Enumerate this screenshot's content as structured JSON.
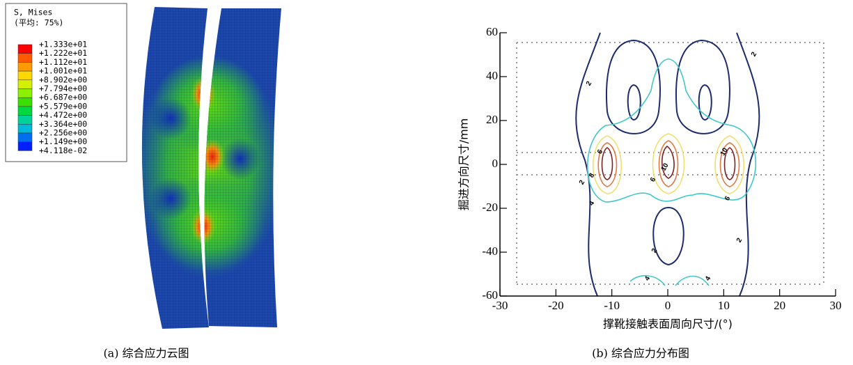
{
  "left_panel": {
    "legend_title": "S, Mises",
    "legend_subtitle": "(平均: 75%)",
    "legend_labels": [
      "+1.333e+01",
      "+1.222e+01",
      "+1.112e+01",
      "+1.001e+01",
      "+8.902e+00",
      "+7.794e+00",
      "+6.687e+00",
      "+5.579e+00",
      "+4.472e+00",
      "+3.364e+00",
      "+2.256e+00",
      "+1.149e+00",
      "+4.118e-02"
    ],
    "legend_colors": [
      "#ff0000",
      "#ff5a00",
      "#ff9a00",
      "#ffd800",
      "#d2f000",
      "#8cf000",
      "#3ae000",
      "#00d840",
      "#00d09a",
      "#00b8d8",
      "#0070f0",
      "#0020ff"
    ],
    "caption": "(a) 综合应力云图"
  },
  "chart_data": {
    "type": "contour",
    "xlabel": "撑靴接触表面周向尺寸/(°)",
    "ylabel": "掘进方向尺寸/mm",
    "xlim": [
      -30,
      30
    ],
    "ylim": [
      -60,
      60
    ],
    "xticks": [
      -30,
      -20,
      -10,
      0,
      10,
      20,
      30
    ],
    "yticks": [
      -60,
      -40,
      -20,
      0,
      20,
      40,
      60
    ],
    "levels": [
      2,
      4,
      6,
      8,
      10
    ],
    "level_colors": [
      "#1c2a6e",
      "#40c8c8",
      "#f0e070",
      "#e07840",
      "#7a2020"
    ],
    "caption": "(b) 综合应力分布图"
  }
}
